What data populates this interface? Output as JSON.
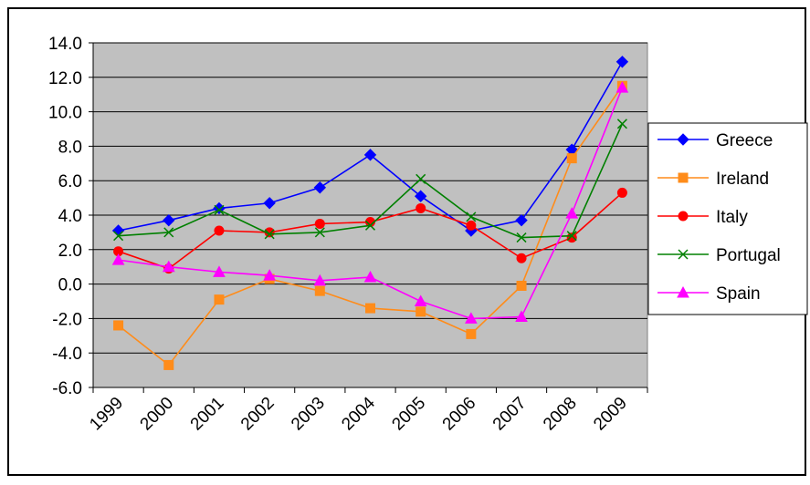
{
  "chart_data": {
    "type": "line",
    "categories": [
      "1999",
      "2000",
      "2001",
      "2002",
      "2003",
      "2004",
      "2005",
      "2006",
      "2007",
      "2008",
      "2009"
    ],
    "series": [
      {
        "name": "Greece",
        "color": "#0000ff",
        "marker": "diamond",
        "values": [
          3.1,
          3.7,
          4.4,
          4.7,
          5.6,
          7.5,
          5.1,
          3.1,
          3.7,
          7.8,
          12.9
        ]
      },
      {
        "name": "Ireland",
        "color": "#ff8c1a",
        "marker": "square",
        "values": [
          -2.4,
          -4.7,
          -0.9,
          0.3,
          -0.4,
          -1.4,
          -1.6,
          -2.9,
          -0.1,
          7.3,
          11.5
        ]
      },
      {
        "name": "Italy",
        "color": "#ff0000",
        "marker": "circle",
        "values": [
          1.9,
          0.9,
          3.1,
          3.0,
          3.5,
          3.6,
          4.4,
          3.4,
          1.5,
          2.7,
          5.3
        ]
      },
      {
        "name": "Portugal",
        "color": "#008000",
        "marker": "x",
        "values": [
          2.8,
          3.0,
          4.3,
          2.9,
          3.0,
          3.4,
          6.1,
          3.9,
          2.7,
          2.8,
          9.3
        ]
      },
      {
        "name": "Spain",
        "color": "#ff00ff",
        "marker": "triangle",
        "values": [
          1.4,
          1.0,
          0.7,
          0.5,
          0.2,
          0.4,
          -1.0,
          -2.0,
          -1.9,
          4.1,
          11.4
        ]
      }
    ],
    "ylim": [
      -6,
      14
    ],
    "yticks": [
      {
        "value": -6,
        "label": "-6.0"
      },
      {
        "value": -4,
        "label": "-4.0"
      },
      {
        "value": -2,
        "label": "-2.0"
      },
      {
        "value": 0,
        "label": "0.0"
      },
      {
        "value": 2,
        "label": "2.0"
      },
      {
        "value": 4,
        "label": "4.0"
      },
      {
        "value": 6,
        "label": "6.0"
      },
      {
        "value": 8,
        "label": "8.0"
      },
      {
        "value": 10,
        "label": "10.0"
      },
      {
        "value": 12,
        "label": "12.0"
      },
      {
        "value": 14,
        "label": "14.0"
      }
    ],
    "grid": true,
    "legend": "right"
  }
}
